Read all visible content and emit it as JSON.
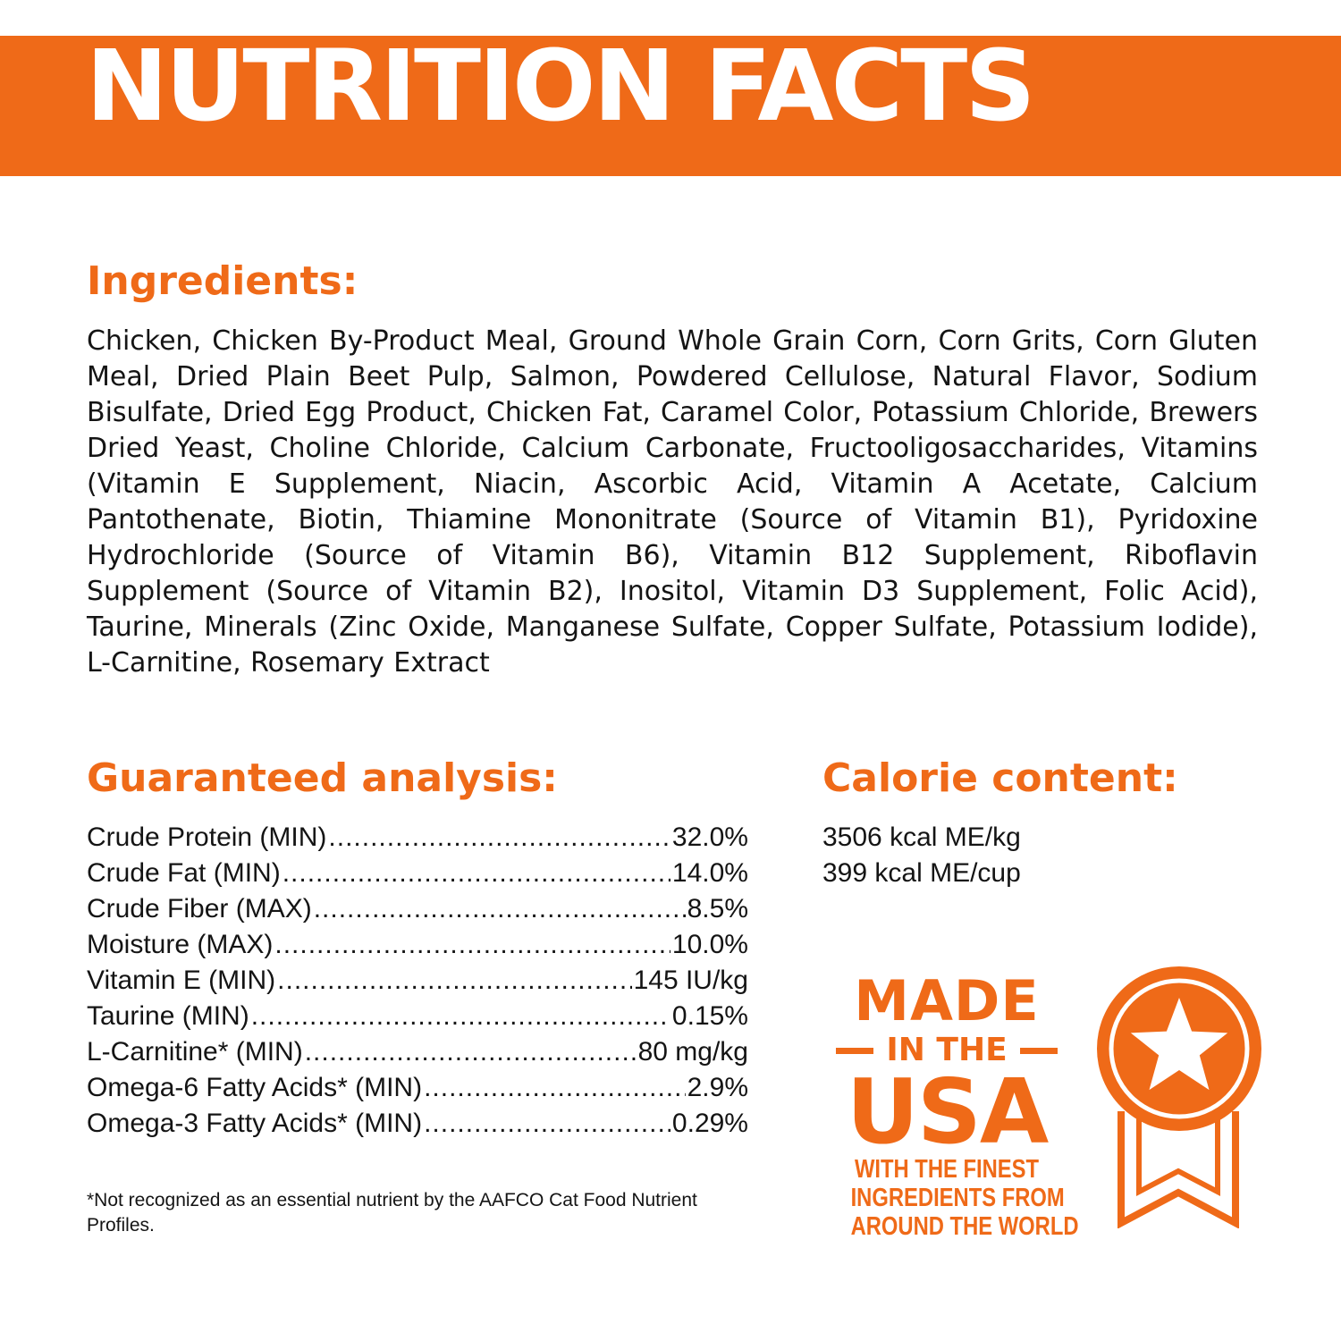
{
  "banner": {
    "title": "NUTRITION FACTS"
  },
  "ingredients": {
    "heading": "Ingredients:",
    "text": "Chicken, Chicken By-Product Meal, Ground Whole Grain Corn, Corn Grits, Corn Gluten Meal, Dried Plain Beet Pulp, Salmon, Powdered Cellulose, Natural Flavor, Sodium Bisulfate, Dried Egg Product, Chicken Fat, Caramel Color, Potassium Chloride, Brewers Dried Yeast, Choline Chloride, Calcium Carbonate, Fructooligosaccharides, Vitamins (Vitamin E Supplement, Niacin, Ascorbic Acid, Vitamin A Acetate, Calcium Pantothenate, Biotin, Thiamine Mononitrate (Source of Vitamin B1), Pyridoxine Hydrochloride (Source of Vitamin B6), Vitamin B12 Supplement, Riboflavin Supplement (Source of Vitamin B2), Inositol, Vitamin D3 Supplement, Folic Acid), Taurine, Minerals (Zinc Oxide, Manganese Sulfate, Copper Sulfate, Potassium Iodide), L-Carnitine, Rosemary Extract"
  },
  "guaranteed_analysis": {
    "heading": "Guaranteed analysis:",
    "rows": [
      {
        "name": "Crude Protein (MIN)",
        "value": "32.0%"
      },
      {
        "name": "Crude Fat (MIN)",
        "value": "14.0%"
      },
      {
        "name": "Crude Fiber (MAX)",
        "value": "8.5%"
      },
      {
        "name": "Moisture (MAX)",
        "value": "10.0%"
      },
      {
        "name": "Vitamin E (MIN)",
        "value": "145 IU/kg"
      },
      {
        "name": "Taurine (MIN)",
        "value": "0.15%"
      },
      {
        "name": "L-Carnitine* (MIN)",
        "value": "80 mg/kg"
      },
      {
        "name": "Omega-6 Fatty Acids* (MIN)",
        "value": "2.9%"
      },
      {
        "name": "Omega-3 Fatty Acids* (MIN)",
        "value": "0.29%"
      }
    ],
    "footnote": "*Not recognized as an essential nutrient by the AAFCO Cat Food Nutrient Profiles."
  },
  "calorie_content": {
    "heading": "Calorie content:",
    "lines": [
      "3506 kcal ME/kg",
      "399 kcal ME/cup"
    ]
  },
  "badge": {
    "made": "MADE",
    "in_the": "IN THE",
    "usa": "USA",
    "tagline": [
      "WITH THE FINEST",
      "INGREDIENTS FROM",
      "AROUND THE WORLD"
    ],
    "icon": "star-medal-icon"
  },
  "colors": {
    "accent": "#ef6a18",
    "text": "#141414",
    "background": "#ffffff"
  }
}
